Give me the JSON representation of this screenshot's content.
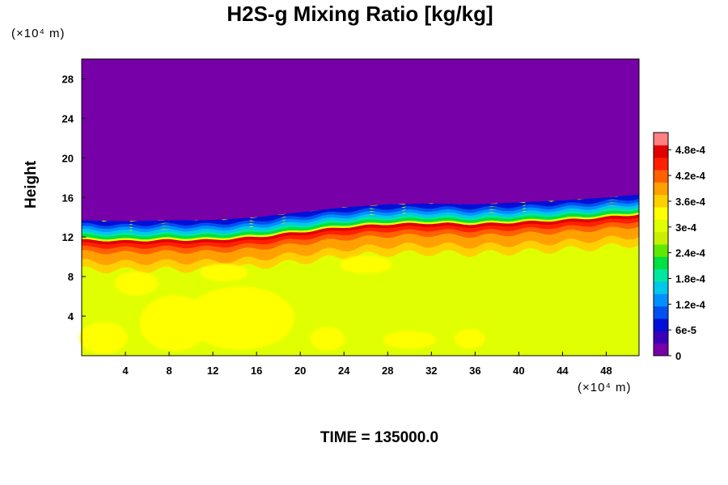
{
  "chart_data": {
    "type": "heatmap",
    "title": "H2S-g Mixing Ratio [kg/kg]",
    "ylabel": "Height",
    "xlabel": "",
    "x_unit": "(×10⁴ m)",
    "y_unit": "(×10⁴ m)",
    "x_ticks": [
      4,
      8,
      12,
      16,
      20,
      24,
      28,
      32,
      36,
      40,
      44,
      48
    ],
    "y_ticks": [
      4,
      8,
      12,
      16,
      20,
      24,
      28
    ],
    "xlim": [
      0,
      51
    ],
    "ylim": [
      0,
      30
    ],
    "colorbar": {
      "vmin": 0,
      "vmax": 0.00052,
      "tick_labels": [
        "0",
        "6e-5",
        "1.2e-4",
        "1.8e-4",
        "2.4e-4",
        "3e-4",
        "3.6e-4",
        "4.2e-4",
        "4.8e-4"
      ],
      "tick_values": [
        0,
        6e-05,
        0.00012,
        0.00018,
        0.00024,
        0.0003,
        0.00036,
        0.00042,
        0.00048
      ],
      "colors": [
        "#7800a8",
        "#3a00b8",
        "#0010d8",
        "#0050f0",
        "#0090ff",
        "#00c8e8",
        "#00e8a0",
        "#00e040",
        "#60e800",
        "#c8f000",
        "#e0ff00",
        "#ffff00",
        "#ffd000",
        "#ffa000",
        "#ff6000",
        "#ff2000",
        "#e00000",
        "#ff8080"
      ]
    },
    "regions": {
      "upper_value": 0,
      "lower_value": 0.00035,
      "interface_height_profile": [
        {
          "x": 0,
          "y": 11.9
        },
        {
          "x": 4,
          "y": 11.8
        },
        {
          "x": 8,
          "y": 11.9
        },
        {
          "x": 12,
          "y": 11.9
        },
        {
          "x": 16,
          "y": 12.2
        },
        {
          "x": 20,
          "y": 12.7
        },
        {
          "x": 24,
          "y": 13.2
        },
        {
          "x": 28,
          "y": 13.5
        },
        {
          "x": 32,
          "y": 13.6
        },
        {
          "x": 36,
          "y": 13.5
        },
        {
          "x": 40,
          "y": 13.7
        },
        {
          "x": 44,
          "y": 13.9
        },
        {
          "x": 48,
          "y": 14.2
        },
        {
          "x": 51,
          "y": 14.5
        }
      ]
    }
  },
  "footer": {
    "time_label": "TIME = 135000.0"
  }
}
